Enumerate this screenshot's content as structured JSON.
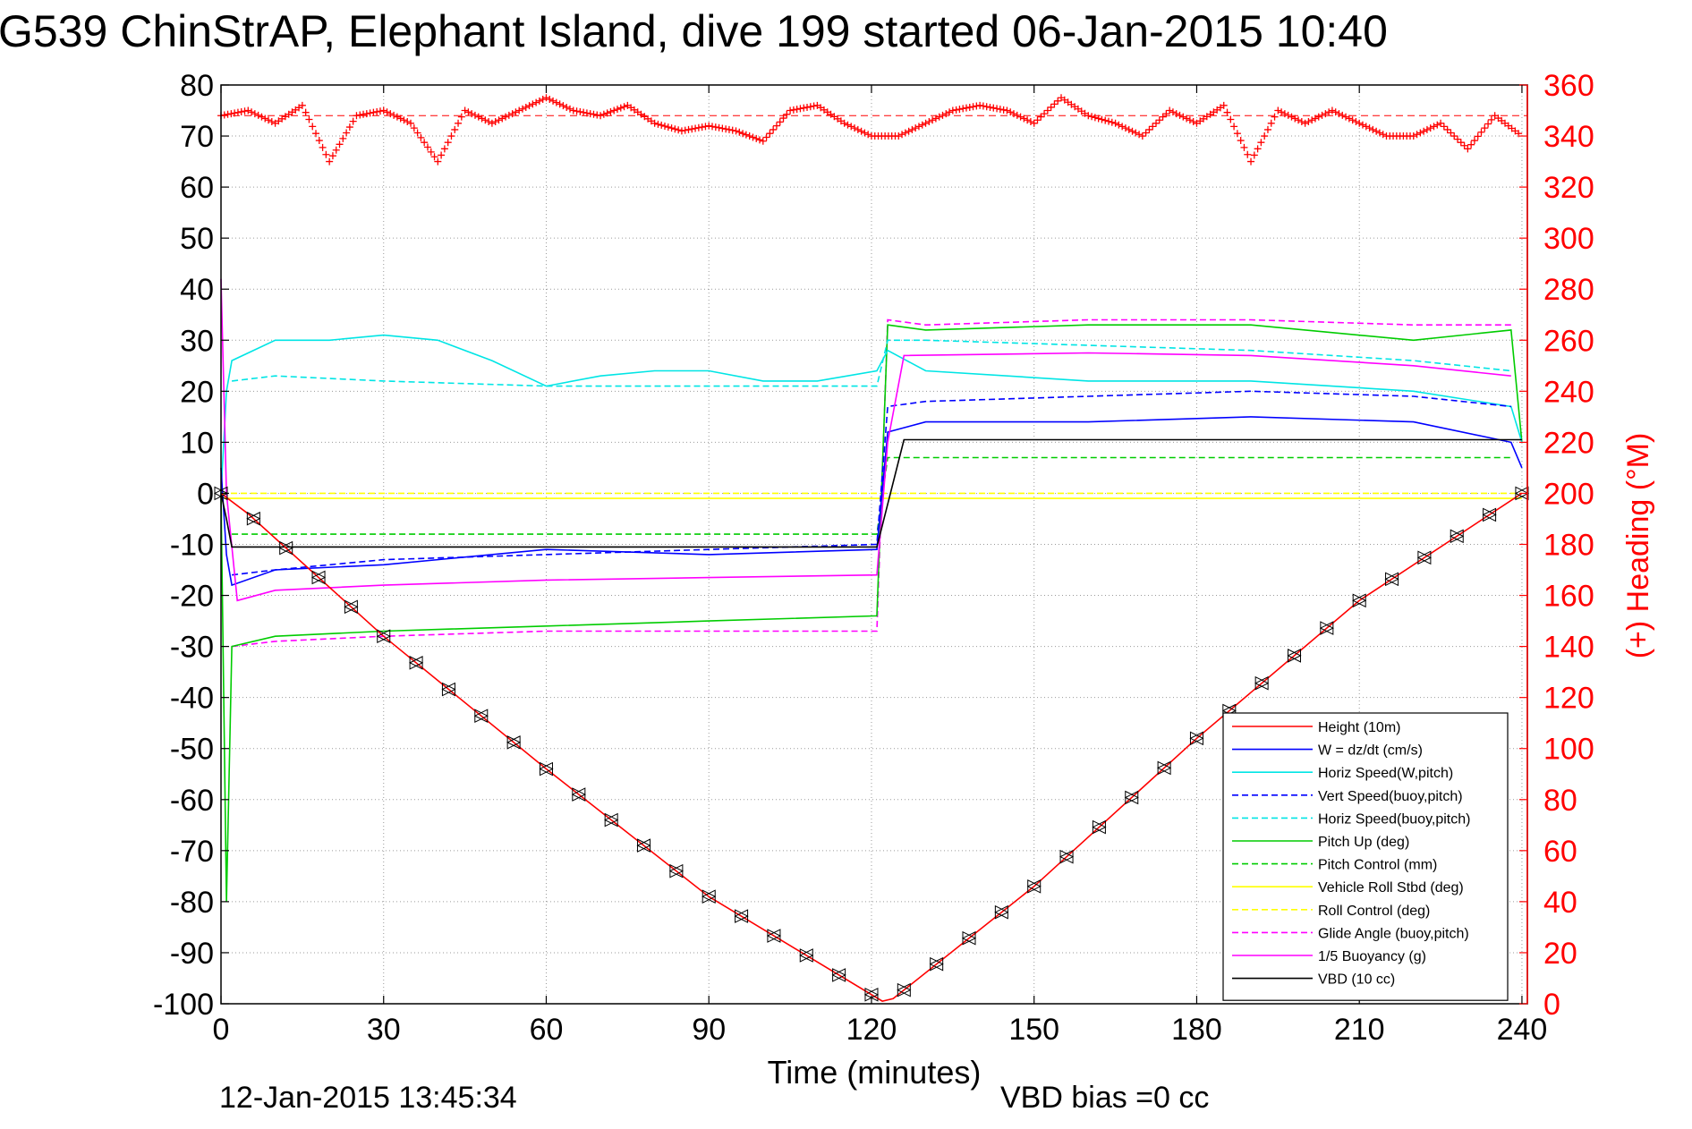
{
  "chart_data": {
    "type": "line",
    "title": "G539 ChinStrAP, Elephant Island, dive 199 started 06-Jan-2015 10:40",
    "xlabel": "Time (minutes)",
    "ylabel": "",
    "y2label": "(+) Heading (°M)",
    "footer_left": "12-Jan-2015 13:45:34",
    "footer_right": "VBD bias =0 cc",
    "xlim": [
      0,
      241
    ],
    "ylim": [
      -100,
      80
    ],
    "y2lim": [
      0,
      360
    ],
    "grid": true,
    "legend_position": "bottom-right",
    "x_ticks": [
      "0",
      "30",
      "60",
      "90",
      "120",
      "150",
      "180",
      "210",
      "240"
    ],
    "y_ticks": [
      "80",
      "70",
      "60",
      "50",
      "40",
      "30",
      "20",
      "10",
      "0",
      "-10",
      "-20",
      "-30",
      "-40",
      "-50",
      "-60",
      "-70",
      "-80",
      "-90",
      "-100"
    ],
    "y2_ticks": [
      "360",
      "340",
      "320",
      "300",
      "280",
      "260",
      "240",
      "220",
      "200",
      "180",
      "160",
      "140",
      "120",
      "100",
      "80",
      "60",
      "40",
      "20",
      "0"
    ],
    "series": [
      {
        "name": "Height (10m)",
        "color": "#ff0000",
        "style": "solid",
        "x": [
          0,
          5,
          30,
          60,
          90,
          122,
          124,
          150,
          180,
          210,
          240
        ],
        "y": [
          0,
          -4,
          -28,
          -54,
          -79,
          -99.5,
          -99,
          -77,
          -48,
          -21,
          0
        ]
      },
      {
        "name": "W = dz/dt (cm/s)",
        "color": "#0000ff",
        "style": "solid",
        "x": [
          0,
          1,
          2,
          10,
          30,
          60,
          90,
          121,
          123,
          130,
          160,
          190,
          220,
          238,
          240
        ],
        "y": [
          5,
          -12,
          -18,
          -15,
          -14,
          -11,
          -12,
          -11,
          12,
          14,
          14,
          15,
          14,
          10,
          5
        ]
      },
      {
        "name": "Horiz Speed(W,pitch)",
        "color": "#00e5e5",
        "style": "solid",
        "x": [
          0,
          1,
          2,
          10,
          20,
          30,
          40,
          50,
          60,
          70,
          80,
          90,
          100,
          110,
          121,
          123,
          130,
          160,
          190,
          220,
          238,
          240
        ],
        "y": [
          0,
          20,
          26,
          30,
          30,
          31,
          30,
          26,
          21,
          23,
          24,
          24,
          22,
          22,
          24,
          28,
          24,
          22,
          22,
          20,
          17,
          10
        ]
      },
      {
        "name": "Vert Speed(buoy,pitch)",
        "color": "#0000ff",
        "style": "dashed",
        "x": [
          2,
          10,
          30,
          60,
          90,
          121,
          123,
          130,
          160,
          190,
          220,
          238
        ],
        "y": [
          -16,
          -15,
          -13,
          -12,
          -11,
          -10,
          17,
          18,
          19,
          20,
          19,
          17
        ]
      },
      {
        "name": "Horiz Speed(buoy,pitch)",
        "color": "#00e5e5",
        "style": "dashed",
        "x": [
          2,
          10,
          30,
          60,
          90,
          121,
          123,
          130,
          160,
          190,
          220,
          238
        ],
        "y": [
          22,
          23,
          22,
          21,
          21,
          21,
          30,
          30,
          29,
          28,
          26,
          24
        ]
      },
      {
        "name": "Pitch Up (deg)",
        "color": "#00cc00",
        "style": "solid",
        "x": [
          0,
          1,
          2,
          10,
          30,
          60,
          90,
          121,
          123,
          130,
          160,
          190,
          220,
          238,
          240
        ],
        "y": [
          0,
          -80,
          -30,
          -28,
          -27,
          -26,
          -25,
          -24,
          33,
          32,
          33,
          33,
          30,
          32,
          10
        ]
      },
      {
        "name": "Pitch Control (mm)",
        "color": "#00cc00",
        "style": "dashed",
        "x": [
          2,
          10,
          30,
          60,
          90,
          121,
          123,
          130,
          160,
          190,
          220,
          238
        ],
        "y": [
          -8,
          -8,
          -8,
          -8,
          -8,
          -8,
          7,
          7,
          7,
          7,
          7,
          7
        ]
      },
      {
        "name": "Vehicle Roll Stbd (deg)",
        "color": "#ffff00",
        "style": "solid",
        "x": [
          0,
          30,
          60,
          90,
          121,
          124,
          150,
          180,
          210,
          240
        ],
        "y": [
          -1,
          -1,
          -1,
          -1,
          -1,
          -1,
          -1,
          -1,
          -1,
          -1
        ]
      },
      {
        "name": "Roll Control (deg)",
        "color": "#ffff00",
        "style": "dashed",
        "x": [
          0,
          30,
          60,
          90,
          121,
          124,
          150,
          180,
          210,
          240
        ],
        "y": [
          0,
          0,
          0,
          0,
          0,
          0,
          0,
          0,
          0,
          0
        ]
      },
      {
        "name": "Glide Angle (buoy,pitch)",
        "color": "#ff00ff",
        "style": "dashed",
        "x": [
          2,
          10,
          30,
          60,
          90,
          121,
          123,
          130,
          160,
          190,
          220,
          238
        ],
        "y": [
          -30,
          -29,
          -28,
          -27,
          -27,
          -27,
          34,
          33,
          34,
          34,
          33,
          33
        ]
      },
      {
        "name": "1/5 Buoyancy (g)",
        "color": "#ff00ff",
        "style": "solid",
        "x": [
          0,
          1,
          3,
          10,
          30,
          60,
          90,
          121,
          123,
          126,
          160,
          190,
          220,
          238
        ],
        "y": [
          42,
          0,
          -21,
          -19,
          -18,
          -17,
          -16.5,
          -16,
          10,
          27,
          27.5,
          27,
          25,
          23
        ]
      },
      {
        "name": "VBD (10 cc)",
        "color": "#000000",
        "style": "solid",
        "x": [
          0,
          1,
          2,
          121,
          126,
          240
        ],
        "y": [
          0,
          -5,
          -10.5,
          -10.5,
          10.5,
          10.5
        ]
      }
    ],
    "heading": {
      "name": "Heading",
      "color": "#ff0000",
      "marker": "+",
      "axis": "right",
      "reference": 348,
      "x": [
        0,
        5,
        10,
        15,
        20,
        25,
        30,
        35,
        40,
        45,
        50,
        55,
        60,
        65,
        70,
        75,
        80,
        85,
        90,
        95,
        100,
        105,
        110,
        115,
        120,
        125,
        130,
        135,
        140,
        145,
        150,
        155,
        160,
        165,
        170,
        175,
        180,
        185,
        190,
        195,
        200,
        205,
        210,
        215,
        220,
        225,
        230,
        235,
        240
      ],
      "y": [
        348,
        350,
        345,
        352,
        330,
        348,
        350,
        345,
        330,
        350,
        345,
        350,
        355,
        350,
        348,
        352,
        345,
        342,
        344,
        342,
        338,
        350,
        352,
        345,
        340,
        340,
        345,
        350,
        352,
        350,
        345,
        355,
        348,
        345,
        340,
        350,
        345,
        352,
        330,
        350,
        345,
        350,
        345,
        340,
        340,
        345,
        335,
        348,
        340
      ]
    }
  }
}
